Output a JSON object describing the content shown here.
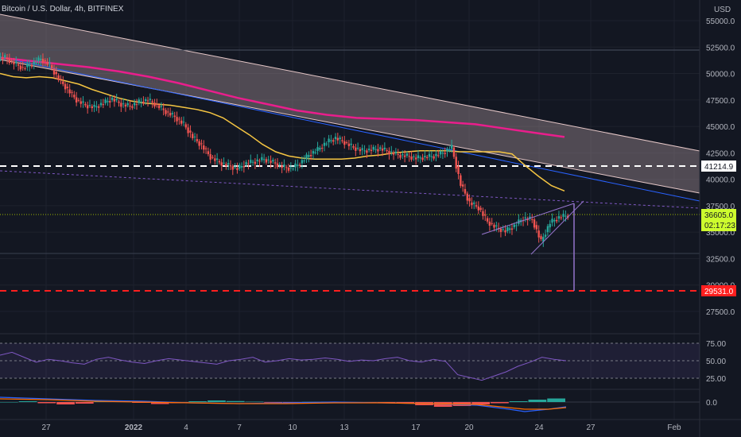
{
  "header": {
    "title": "Bitcoin / U.S. Dollar, 4h, BITFINEX",
    "currency": "USD"
  },
  "colors": {
    "background": "#131722",
    "grid": "#1e222d",
    "candle_up": "#26a69a",
    "candle_down": "#ef5350",
    "ma_yellow": "#f5c542",
    "ma_pink": "#e91e8c",
    "trendline_blue": "#2962ff",
    "channel_fill": "#9b8a90",
    "rsi_line": "#7e57c2",
    "support_red": "#ff1f1f",
    "level_white": "#ffffff",
    "price_tag_green": "#cdfc2e"
  },
  "price_axis": {
    "ticks": [
      "55000.0",
      "52500.0",
      "50000.0",
      "47500.0",
      "45000.0",
      "42500.0",
      "40000.0",
      "37500.0",
      "35000.0",
      "32500.0",
      "30000.0",
      "27500.0"
    ]
  },
  "time_axis": {
    "labels": [
      "27",
      "2022",
      "4",
      "7",
      "10",
      "13",
      "17",
      "20",
      "24",
      "27",
      "Feb"
    ]
  },
  "price_tags": {
    "level_white": "41214.9",
    "current_price": "36605.0",
    "countdown": "02:17:23",
    "level_red": "29531.0"
  },
  "rsi_axis": {
    "ticks": [
      "75.00",
      "50.00",
      "25.00"
    ]
  },
  "macd_axis": {
    "ticks": [
      "0.0"
    ]
  },
  "chart_data": {
    "type": "line",
    "symbol": "Bitcoin / U.S. Dollar",
    "timeframe": "4h",
    "exchange": "BITFINEX",
    "ylim": [
      26500,
      56000
    ],
    "x_labels": [
      "27",
      "2022",
      "4",
      "7",
      "10",
      "13",
      "17",
      "20",
      "24",
      "27",
      "Feb"
    ],
    "price_close": [
      51500,
      51000,
      50500,
      50900,
      51400,
      50800,
      49500,
      48500,
      47500,
      47000,
      46800,
      47200,
      47600,
      47100,
      46900,
      47300,
      47500,
      47000,
      46400,
      45900,
      45200,
      44000,
      43200,
      42100,
      41600,
      41300,
      41000,
      41500,
      41700,
      41900,
      41600,
      41200,
      41000,
      41500,
      42300,
      42800,
      43500,
      43900,
      43500,
      43000,
      42700,
      42800,
      42900,
      42600,
      42300,
      42200,
      42000,
      42100,
      42200,
      42500,
      43000,
      39500,
      37800,
      37300,
      36000,
      35400,
      35100,
      35600,
      36300,
      36200,
      34100,
      35900,
      36400,
      36600
    ],
    "ma_fast": [
      50000,
      49700,
      49600,
      49700,
      49600,
      49300,
      49000,
      48500,
      48100,
      47700,
      47400,
      47200,
      47100,
      47000,
      46800,
      46600,
      46300,
      45800,
      45000,
      44200,
      43300,
      42600,
      42200,
      42000,
      41900,
      41900,
      41900,
      42000,
      42200,
      42300,
      42500,
      42600,
      42700,
      42700,
      42700,
      42600,
      42600,
      42600,
      42600,
      42400,
      41300,
      40300,
      39400,
      38900
    ],
    "ma_slow": [
      51500,
      51200,
      50900,
      50600,
      50200,
      49700,
      49100,
      48400,
      47700,
      47100,
      46500,
      46100,
      45800,
      45700,
      45600,
      45400,
      45200,
      44800,
      44400,
      44000
    ],
    "levels": {
      "resistance": 41214.9,
      "current": 36605.0,
      "support": 29531.0
    },
    "rsi": [
      58,
      62,
      55,
      48,
      52,
      50,
      47,
      45,
      52,
      55,
      51,
      48,
      46,
      50,
      53,
      51,
      49,
      47,
      45,
      50,
      52,
      55,
      48,
      50,
      53,
      51,
      52,
      54,
      52,
      49,
      51,
      50,
      53,
      55,
      50,
      48,
      52,
      49,
      30,
      26,
      22,
      28,
      34,
      42,
      48,
      55,
      52,
      50
    ],
    "macd_hist": [
      0,
      40,
      -60,
      -120,
      -80,
      30,
      60,
      -40,
      -100,
      -60,
      40,
      80,
      50,
      20,
      -30,
      -20,
      10,
      20,
      -10,
      -30,
      -50,
      -80,
      -160,
      -240,
      -200,
      -120,
      -60,
      40,
      120,
      180
    ]
  }
}
